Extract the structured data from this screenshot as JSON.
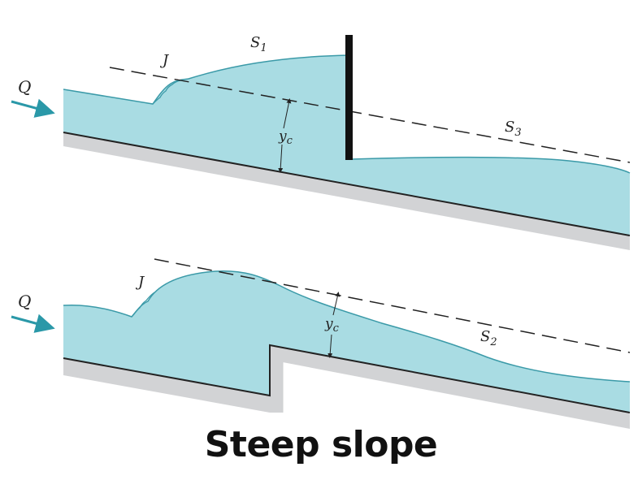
{
  "diagram": {
    "caption": "Steep slope",
    "top_panel": {
      "flow_label": "Q",
      "jump_label": "J",
      "critical_depth_label": "y",
      "critical_depth_sub": "c",
      "profile_upstream_label": "S",
      "profile_upstream_sub": "1",
      "profile_downstream_label": "S",
      "profile_downstream_sub": "3"
    },
    "bottom_panel": {
      "flow_label": "Q",
      "jump_label": "J",
      "critical_depth_label": "y",
      "critical_depth_sub": "c",
      "profile_label": "S",
      "profile_sub": "2"
    },
    "colors": {
      "water": "#a9dce3",
      "water_edge": "#3b9aa8",
      "bed": "#d2d3d5",
      "arrow": "#2a98a8",
      "gate": "#111111"
    }
  }
}
